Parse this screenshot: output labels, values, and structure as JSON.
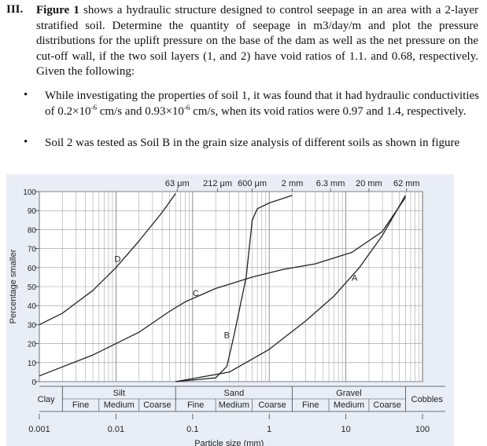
{
  "question": {
    "number": "III.",
    "lead_bold": "Figure 1",
    "lead_rest": " shows a hydraulic structure designed to control seepage in an area with a 2-layer stratified soil. Determine the quantity of seepage in m3/day/m and plot the pressure distributions for the uplift pressure on the base of the dam as well as the net pressure on the cut-off wall, if the two soil layers (1, and 2) have void ratios of 1.1. and 0.68, respectively. Given the following:"
  },
  "bullets": [
    {
      "glyph": "•",
      "t1": "While investigating the properties of soil 1, it was found that it had hydraulic conductivities of 0.2×10",
      "s1": "-6",
      "t2": " cm/s and 0.93×10",
      "s2": "-6",
      "t3": " cm/s, when its void ratios were 0.97 and 1.4, respectively."
    },
    {
      "glyph": "•",
      "t1": "Soil 2 was tested as Soil B in the grain size analysis of different soils as shown in figure"
    }
  ],
  "chart_data": {
    "type": "line",
    "xscale": "log",
    "xlim": [
      0.001,
      100
    ],
    "ylim": [
      0,
      100
    ],
    "ylabel": "Percentage smaller",
    "xlabel": "Particle size (mm)",
    "x_tick_labels": [
      "0.001",
      "0.01",
      "0.1",
      "1",
      "10",
      "100"
    ],
    "x_tick_values": [
      0.001,
      0.01,
      0.1,
      1,
      10,
      100
    ],
    "y_tick_labels": [
      "0",
      "10",
      "20",
      "30",
      "40",
      "50",
      "60",
      "70",
      "80",
      "90",
      "100"
    ],
    "top_tick_labels": [
      "63 μm",
      "212 μm",
      "600 μm",
      "2 mm",
      "6.3 mm",
      "20 mm",
      "62 mm"
    ],
    "top_tick_values": [
      0.063,
      0.212,
      0.6,
      2,
      6.3,
      20,
      62
    ],
    "grid": true,
    "classification": {
      "clay": "Clay",
      "silt": "Silt",
      "sand": "Sand",
      "gravel": "Gravel",
      "cobbles": "Cobbles",
      "fine": "Fine",
      "medium": "Medium",
      "coarse": "Coarse"
    },
    "series": [
      {
        "name": "A",
        "points": [
          [
            0.06,
            0
          ],
          [
            0.3,
            5
          ],
          [
            1,
            17
          ],
          [
            3,
            32
          ],
          [
            7,
            45
          ],
          [
            15,
            60
          ],
          [
            30,
            77
          ],
          [
            60,
            98
          ]
        ]
      },
      {
        "name": "B",
        "points": [
          [
            0.06,
            0
          ],
          [
            0.2,
            2
          ],
          [
            0.28,
            8
          ],
          [
            0.35,
            25
          ],
          [
            0.5,
            55
          ],
          [
            0.6,
            85
          ],
          [
            0.7,
            91
          ],
          [
            1,
            94
          ],
          [
            2,
            98
          ]
        ]
      },
      {
        "name": "C",
        "points": [
          [
            0.001,
            3
          ],
          [
            0.005,
            14
          ],
          [
            0.02,
            26
          ],
          [
            0.05,
            37
          ],
          [
            0.08,
            42
          ],
          [
            0.2,
            49
          ],
          [
            0.6,
            55
          ],
          [
            1.5,
            59
          ],
          [
            4,
            62
          ],
          [
            12,
            68
          ],
          [
            30,
            79
          ],
          [
            60,
            97
          ]
        ]
      },
      {
        "name": "D",
        "points": [
          [
            0.001,
            30
          ],
          [
            0.002,
            36
          ],
          [
            0.005,
            48
          ],
          [
            0.01,
            60
          ],
          [
            0.02,
            74
          ],
          [
            0.04,
            89
          ],
          [
            0.06,
            99
          ]
        ]
      }
    ],
    "annotations": [
      {
        "text": "A",
        "x": 13,
        "y": 53
      },
      {
        "text": "B",
        "x": 0.28,
        "y": 23
      },
      {
        "text": "C",
        "x": 0.11,
        "y": 45
      },
      {
        "text": "D",
        "x": 0.0105,
        "y": 63
      }
    ]
  }
}
